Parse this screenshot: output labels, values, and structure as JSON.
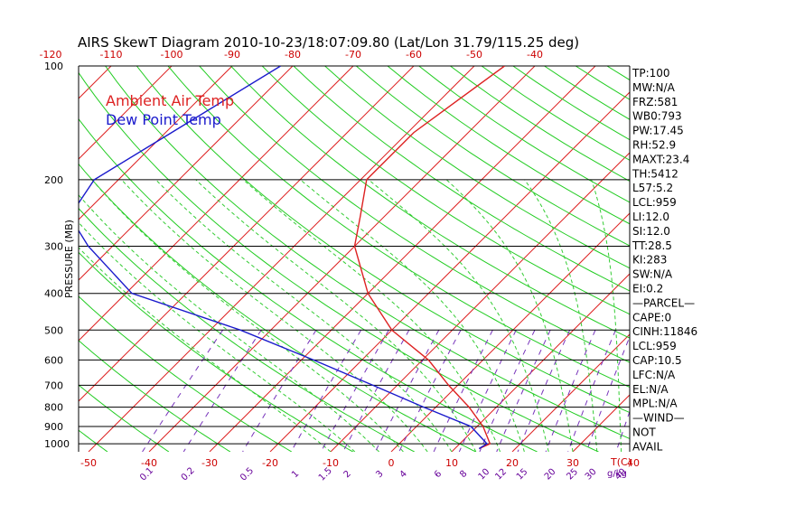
{
  "chart_data": {
    "type": "skewt",
    "title": "AIRS SkewT Diagram 2010-10-23/18:07:09.80 (Lat/Lon 31.79/115.25 deg)",
    "ylabel": "PRESSURE (MB)",
    "xlabel_temp": "T(C)",
    "xlabel_mixing": "g/kg",
    "pressure_ticks": [
      100,
      200,
      300,
      400,
      500,
      600,
      700,
      800,
      900,
      1000
    ],
    "pressure_range": [
      100,
      1050
    ],
    "top_temp_ticks": [
      -120,
      -110,
      -100,
      -90,
      -80,
      -70,
      -60,
      -50,
      -40
    ],
    "bottom_temp_ticks": [
      -50,
      -40,
      -30,
      -20,
      -10,
      0,
      10,
      20,
      30,
      40
    ],
    "mixing_ratio_labels": [
      "0.1",
      "0.2",
      "0.5",
      "1",
      "1.5",
      "2",
      "3",
      "4",
      "6",
      "8",
      "10",
      "12",
      "15",
      "20",
      "25",
      "30",
      "40"
    ],
    "legend": [
      {
        "label": "Ambient Air Temp",
        "color": "#dd2222"
      },
      {
        "label": "Dew Point Temp",
        "color": "#1a1acc"
      }
    ],
    "series": [
      {
        "name": "Ambient Air Temp",
        "color": "#dd2222",
        "points": [
          [
            100,
            -45
          ],
          [
            150,
            -49
          ],
          [
            200,
            -49
          ],
          [
            250,
            -44
          ],
          [
            300,
            -40
          ],
          [
            400,
            -30
          ],
          [
            500,
            -20
          ],
          [
            600,
            -9
          ],
          [
            700,
            -1.5
          ],
          [
            800,
            5.5
          ],
          [
            900,
            11
          ],
          [
            1000,
            15
          ],
          [
            1030,
            14
          ]
        ]
      },
      {
        "name": "Dew Point Temp",
        "color": "#1a1acc",
        "points": [
          [
            100,
            -82
          ],
          [
            150,
            -89
          ],
          [
            200,
            -94
          ],
          [
            250,
            -92
          ],
          [
            300,
            -84
          ],
          [
            400,
            -69
          ],
          [
            500,
            -45
          ],
          [
            600,
            -28
          ],
          [
            700,
            -14
          ],
          [
            800,
            -2
          ],
          [
            900,
            9
          ],
          [
            1000,
            14.5
          ],
          [
            1030,
            14
          ]
        ]
      }
    ]
  },
  "stats": [
    "TP:100",
    "MW:N/A",
    "FRZ:581",
    "WB0:793",
    "PW:17.45",
    "RH:52.9",
    "MAXT:23.4",
    "TH:5412",
    "L57:5.2",
    "LCL:959",
    "LI:12.0",
    "SI:12.0",
    "TT:28.5",
    "KI:283",
    "SW:N/A",
    "EI:0.2",
    "—PARCEL—",
    "CAPE:0",
    "CINH:11846",
    "LCL:959",
    "CAP:10.5",
    "LFC:N/A",
    "EL:N/A",
    "MPL:N/A",
    "—WIND—",
    "NOT",
    "AVAIL"
  ]
}
